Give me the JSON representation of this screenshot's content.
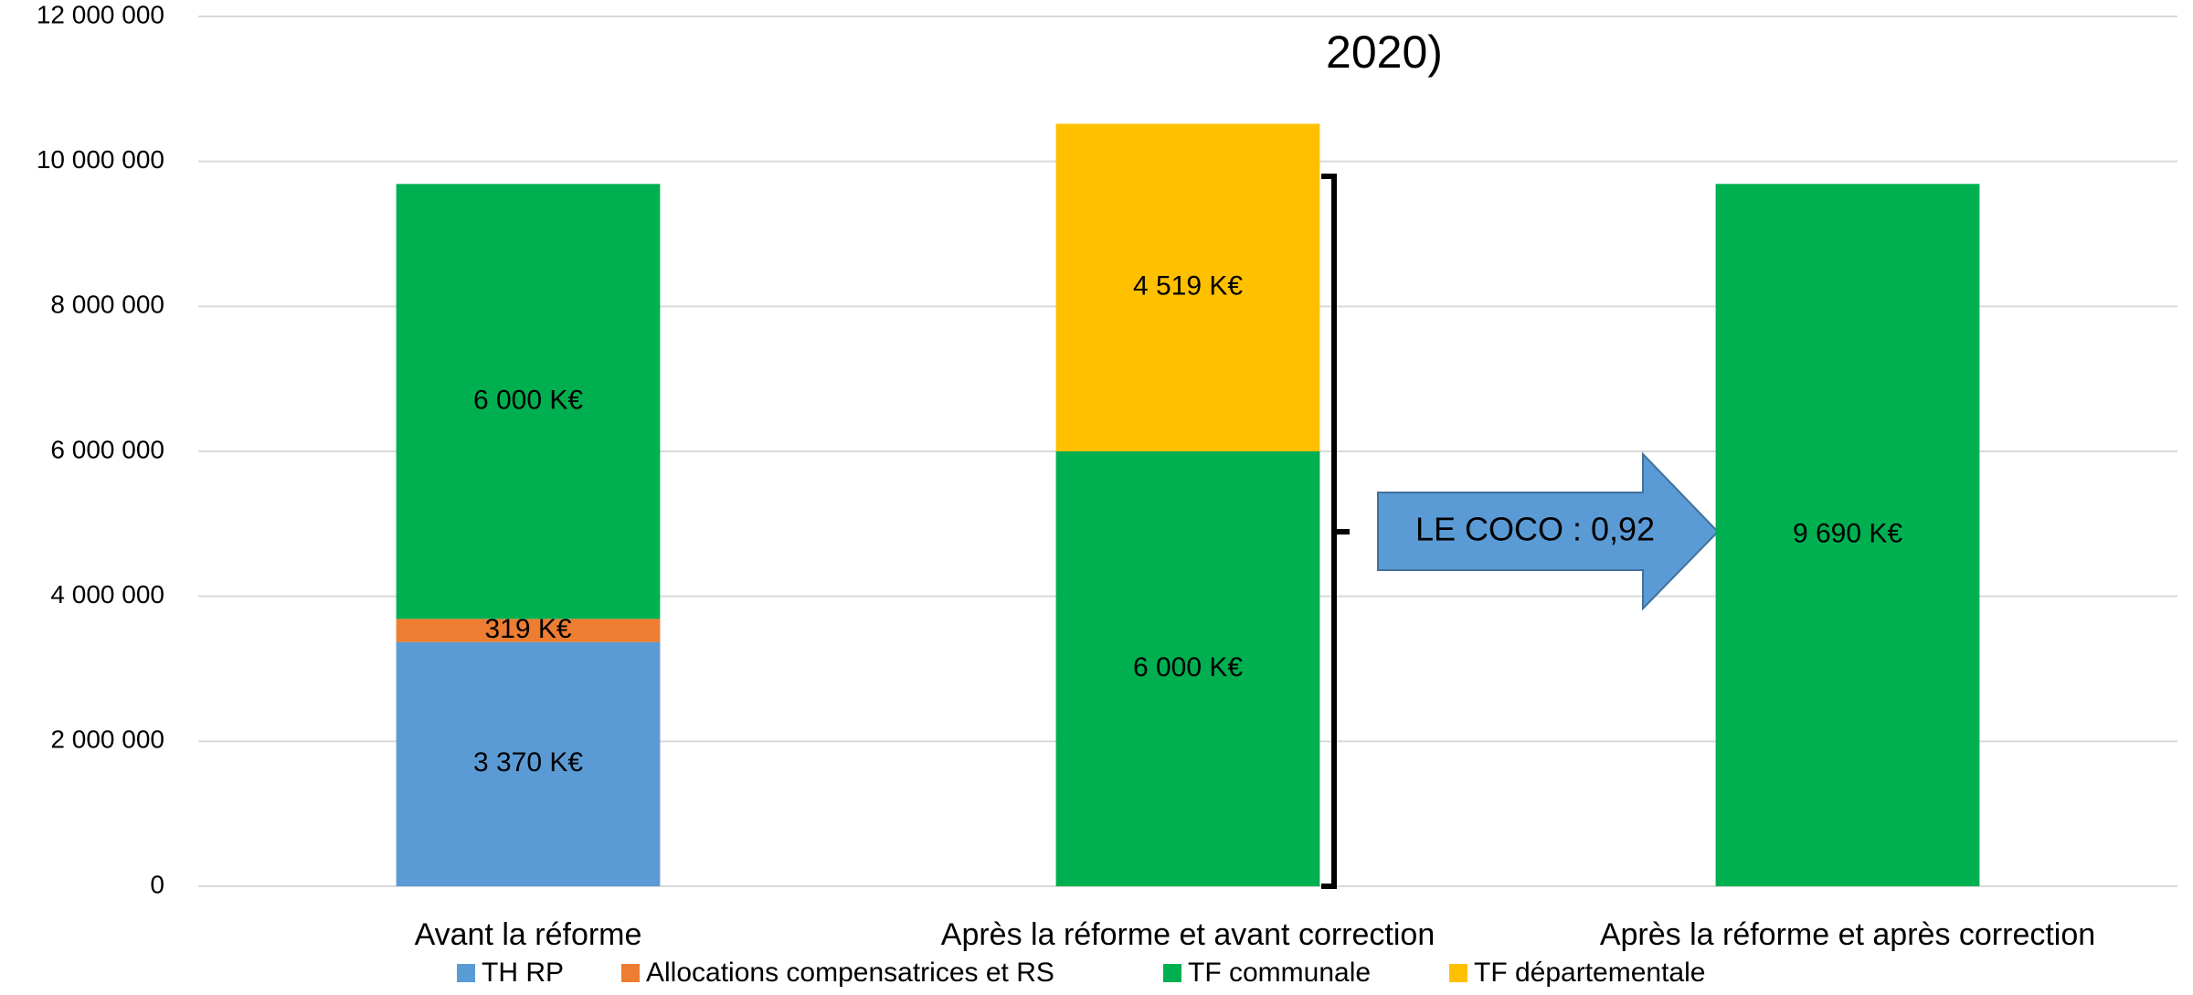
{
  "chart_data": {
    "type": "stacked_bar",
    "title": "2020)",
    "categories": [
      "Avant la réforme",
      "Après la réforme et avant correction",
      "Après la réforme et après correction"
    ],
    "series": [
      {
        "name": "TH RP",
        "color": "#5b9bd5",
        "values": [
          3370000,
          null,
          null
        ],
        "value_labels": [
          "3 370 K€",
          null,
          null
        ]
      },
      {
        "name": "Allocations compensatrices et RS",
        "color": "#ed7d31",
        "values": [
          319000,
          null,
          null
        ],
        "value_labels": [
          "319 K€",
          null,
          null
        ]
      },
      {
        "name": "TF communale",
        "color": "#00b050",
        "values": [
          6000000,
          6000000,
          9690000
        ],
        "value_labels": [
          "6 000 K€",
          "6 000 K€",
          "9 690 K€"
        ]
      },
      {
        "name": "TF départementale",
        "color": "#ffc000",
        "values": [
          null,
          4519000,
          null
        ],
        "value_labels": [
          null,
          "4 519 K€",
          null
        ]
      }
    ],
    "annotation": "LE COCO : 0,92",
    "ylim": [
      0,
      12000000
    ],
    "yticks": [
      0,
      {
        "value": 2000000,
        "label": "2 000 000"
      },
      {
        "value": 4000000,
        "label": "4 000 000"
      },
      {
        "value": 6000000,
        "label": "6 000 000"
      },
      {
        "value": 8000000,
        "label": "8 000 000"
      },
      {
        "value": 10000000,
        "label": "10 000 000"
      },
      {
        "value": 12000000,
        "label": "12 000 000"
      }
    ],
    "grid": true,
    "legend": "bottom"
  }
}
